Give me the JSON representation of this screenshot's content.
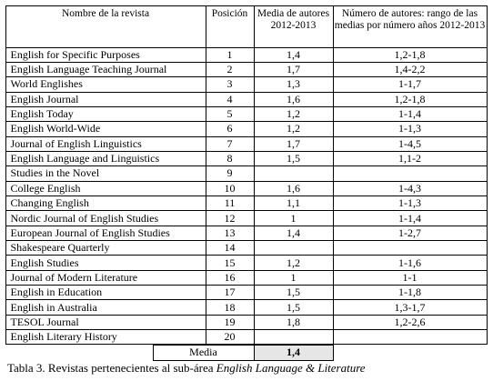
{
  "table": {
    "header": [
      "Nombre de la revista",
      "Posición",
      "Media de autores 2012-2013",
      "Número de autores: rango de las medias por número años 2012-2013"
    ],
    "rows": [
      {
        "name": "English for Specific Purposes",
        "position": "1",
        "mean": "1,4",
        "range": "1,2-1,8"
      },
      {
        "name": "English Language Teaching Journal",
        "position": "2",
        "mean": "1,7",
        "range": "1,4-2,2"
      },
      {
        "name": "World Englishes",
        "position": "3",
        "mean": "1,3",
        "range": "1-1,7"
      },
      {
        "name": "English Journal",
        "position": "4",
        "mean": "1,6",
        "range": "1,2-1,8"
      },
      {
        "name": "English Today",
        "position": "5",
        "mean": "1,2",
        "range": "1-1,4"
      },
      {
        "name": "English World-Wide",
        "position": "6",
        "mean": "1,2",
        "range": "1-1,3"
      },
      {
        "name": "Journal of English Linguistics",
        "position": "7",
        "mean": "1,7",
        "range": "1-4,5"
      },
      {
        "name": "English Language and Linguistics",
        "position": "8",
        "mean": "1,5",
        "range": "1,1-2"
      },
      {
        "name": "Studies in the Novel",
        "position": "9"
      },
      {
        "name": "College English",
        "position": "10",
        "mean": "1,6",
        "range": "1-4,3"
      },
      {
        "name": "Changing English",
        "position": "11",
        "mean": "1,1",
        "range": "1-1,3"
      },
      {
        "name": "Nordic Journal of English Studies",
        "position": "12",
        "mean": "1",
        "range": "1-1,4"
      },
      {
        "name": "European Journal of English Studies",
        "position": "13",
        "mean": "1,4",
        "range": "1-2,7"
      },
      {
        "name": "Shakespeare Quarterly",
        "position": "14"
      },
      {
        "name": "English Studies",
        "position": "15",
        "mean": "1,2",
        "range": "1-1,6"
      },
      {
        "name": "Journal of Modern Literature",
        "position": "16",
        "mean": "1",
        "range": "1-1"
      },
      {
        "name": "English in Education",
        "position": "17",
        "mean": "1,5",
        "range": "1-1,8"
      },
      {
        "name": "English in Australia",
        "position": "18",
        "mean": "1,5",
        "range": "1,3-1,7"
      },
      {
        "name": "TESOL Journal",
        "position": "19",
        "mean": "1,8",
        "range": "1,2-2,6"
      },
      {
        "name": "English Literary History",
        "position": "20"
      }
    ],
    "footer": {
      "label": "Media",
      "mean": "1,4"
    }
  },
  "caption": {
    "text": "Tabla 3. Revistas pertenecientes al sub-área",
    "emphasis": "English Language & Literature"
  }
}
